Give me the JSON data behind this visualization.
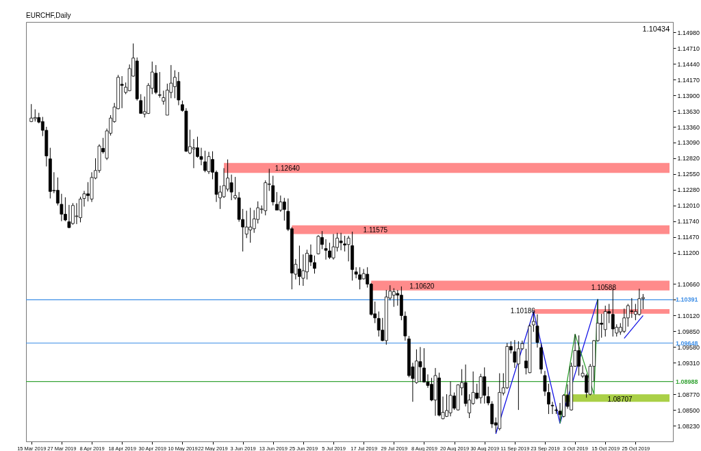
{
  "chart_data": {
    "type": "candlestick",
    "title": "EURCHF,Daily",
    "categories": [
      "15 Mar 2019",
      null,
      null,
      null,
      null,
      null,
      null,
      null,
      "27 Mar 2019",
      null,
      null,
      null,
      null,
      null,
      null,
      null,
      "8 Apr 2019",
      null,
      null,
      null,
      null,
      null,
      null,
      null,
      "18 Apr 2019",
      null,
      null,
      null,
      null,
      null,
      null,
      null,
      "30 Apr 2019",
      null,
      null,
      null,
      null,
      null,
      null,
      null,
      "10 May 2019",
      null,
      null,
      null,
      null,
      null,
      null,
      null,
      "22 May 2019",
      null,
      null,
      null,
      null,
      null,
      null,
      null,
      "3 Jun 2019",
      null,
      null,
      null,
      null,
      null,
      null,
      null,
      "13 Jun 2019",
      null,
      null,
      null,
      null,
      null,
      null,
      null,
      "25 Jun 2019",
      null,
      null,
      null,
      null,
      null,
      null,
      null,
      "5 Jul 2019",
      null,
      null,
      null,
      null,
      null,
      null,
      null,
      "17 Jul 2019",
      null,
      null,
      null,
      null,
      null,
      null,
      null,
      "29 Jul 2019",
      null,
      null,
      null,
      null,
      null,
      null,
      null,
      "8 Aug 2019",
      null,
      null,
      null,
      null,
      null,
      null,
      null,
      "20 Aug 2019",
      null,
      null,
      null,
      null,
      null,
      null,
      null,
      "30 Aug 2019",
      null,
      null,
      null,
      null,
      null,
      null,
      null,
      "11 Sep 2019",
      null,
      null,
      null,
      null,
      null,
      null,
      null,
      "23 Sep 2019",
      null,
      null,
      null,
      null,
      null,
      null,
      null,
      "3 Oct 2019",
      null,
      null,
      null,
      null,
      null,
      null,
      null,
      "15 Oct 2019",
      null,
      null,
      null,
      null,
      null,
      null,
      null,
      "25 Oct 2019",
      null,
      null
    ],
    "ohlc": [
      [
        1.1345,
        1.1375,
        1.1344,
        1.1351
      ],
      [
        1.135,
        1.1366,
        1.1345,
        1.1352
      ],
      [
        1.1352,
        1.136,
        1.1342,
        1.1344
      ],
      [
        1.1345,
        1.1353,
        1.132,
        1.133
      ],
      [
        1.133,
        1.1336,
        1.1268,
        1.1286
      ],
      [
        1.1281,
        1.13,
        1.1213,
        1.1225
      ],
      [
        1.1226,
        1.1258,
        1.1222,
        1.1227
      ],
      [
        1.1227,
        1.1249,
        1.1201,
        1.1205
      ],
      [
        1.1203,
        1.1221,
        1.1174,
        1.1186
      ],
      [
        1.1186,
        1.1215,
        1.1174,
        1.1176
      ],
      [
        1.1173,
        1.1202,
        1.1162,
        1.1163
      ],
      [
        1.117,
        1.1205,
        1.1168,
        1.1201
      ],
      [
        1.1182,
        1.1205,
        1.1169,
        1.1183
      ],
      [
        1.118,
        1.1216,
        1.1172,
        1.1212
      ],
      [
        1.1213,
        1.1226,
        1.1199,
        1.1221
      ],
      [
        1.1221,
        1.1241,
        1.1208,
        1.1218
      ],
      [
        1.1212,
        1.1258,
        1.1207,
        1.1249
      ],
      [
        1.1248,
        1.1282,
        1.1246,
        1.1261
      ],
      [
        1.1261,
        1.1306,
        1.1257,
        1.1303
      ],
      [
        1.1299,
        1.1317,
        1.129,
        1.1293
      ],
      [
        1.1282,
        1.1333,
        1.1279,
        1.1329
      ],
      [
        1.1325,
        1.1356,
        1.1321,
        1.1351
      ],
      [
        1.1345,
        1.1377,
        1.1343,
        1.137
      ],
      [
        1.1367,
        1.1425,
        1.1366,
        1.1421
      ],
      [
        1.1409,
        1.1423,
        1.1368,
        1.1407
      ],
      [
        1.1395,
        1.1412,
        1.1392,
        1.1404
      ],
      [
        1.1398,
        1.1443,
        1.1397,
        1.1436
      ],
      [
        1.1423,
        1.1479,
        1.1422,
        1.1454
      ],
      [
        1.1449,
        1.1455,
        1.1381,
        1.1384
      ],
      [
        1.1381,
        1.1392,
        1.1359,
        1.1359
      ],
      [
        1.1358,
        1.1388,
        1.1352,
        1.1362
      ],
      [
        1.1359,
        1.1411,
        1.1358,
        1.1407
      ],
      [
        1.1402,
        1.1448,
        1.1392,
        1.143
      ],
      [
        1.1428,
        1.1442,
        1.1392,
        1.1395
      ],
      [
        1.1391,
        1.143,
        1.1386,
        1.139
      ],
      [
        1.138,
        1.1398,
        1.1374,
        1.1386
      ],
      [
        1.1356,
        1.141,
        1.1356,
        1.1399
      ],
      [
        1.1395,
        1.1442,
        1.1385,
        1.1411
      ],
      [
        1.1405,
        1.1433,
        1.1385,
        1.1421
      ],
      [
        1.1414,
        1.143,
        1.1373,
        1.1382
      ],
      [
        1.1374,
        1.1381,
        1.1362,
        1.1364
      ],
      [
        1.1363,
        1.1368,
        1.1293,
        1.1294
      ],
      [
        1.1291,
        1.1331,
        1.1289,
        1.1302
      ],
      [
        1.1298,
        1.1315,
        1.1265,
        1.13
      ],
      [
        1.13,
        1.1319,
        1.1283,
        1.1285
      ],
      [
        1.1285,
        1.13,
        1.127,
        1.128
      ],
      [
        1.1276,
        1.1295,
        1.1258,
        1.1261
      ],
      [
        1.1259,
        1.1293,
        1.1255,
        1.1285
      ],
      [
        1.128,
        1.1294,
        1.1246,
        1.1258
      ],
      [
        1.1258,
        1.1261,
        1.1207,
        1.122
      ],
      [
        1.1214,
        1.1235,
        1.1195,
        1.1224
      ],
      [
        1.1216,
        1.1265,
        1.1214,
        1.1235
      ],
      [
        1.1229,
        1.128,
        1.1225,
        1.1248
      ],
      [
        1.124,
        1.1254,
        1.121,
        1.1224
      ],
      [
        1.1214,
        1.125,
        1.1211,
        1.1218
      ],
      [
        1.1214,
        1.1224,
        1.1173,
        1.1177
      ],
      [
        1.1177,
        1.1195,
        1.1122,
        1.1164
      ],
      [
        1.1152,
        1.1192,
        1.1145,
        1.1164
      ],
      [
        1.1159,
        1.1197,
        1.1137,
        1.1164
      ],
      [
        1.1161,
        1.1193,
        1.1154,
        1.1178
      ],
      [
        1.1177,
        1.1208,
        1.117,
        1.1197
      ],
      [
        1.1194,
        1.1201,
        1.1187,
        1.1195
      ],
      [
        1.1192,
        1.1244,
        1.1184,
        1.124
      ],
      [
        1.1237,
        1.1264,
        1.1226,
        1.1238
      ],
      [
        1.1235,
        1.1252,
        1.1201,
        1.1207
      ],
      [
        1.1203,
        1.1224,
        1.1193,
        1.1193
      ],
      [
        1.1193,
        1.1218,
        1.119,
        1.1207
      ],
      [
        1.1207,
        1.1214,
        1.1175,
        1.1194
      ],
      [
        1.1191,
        1.1213,
        1.1157,
        1.116
      ],
      [
        1.1161,
        1.1164,
        1.1057,
        1.1085
      ],
      [
        1.1083,
        1.1109,
        1.1074,
        1.11
      ],
      [
        1.1092,
        1.1132,
        1.1064,
        1.1079
      ],
      [
        1.1076,
        1.1117,
        1.1063,
        1.1089
      ],
      [
        1.1087,
        1.1125,
        1.1074,
        1.1119
      ],
      [
        1.1116,
        1.1134,
        1.1097,
        1.1104
      ],
      [
        1.1103,
        1.1115,
        1.1084,
        1.1093
      ],
      [
        1.1118,
        1.115,
        1.1117,
        1.1148
      ],
      [
        1.1146,
        1.1157,
        1.1126,
        1.1134
      ],
      [
        1.1127,
        1.1143,
        1.1108,
        1.1124
      ],
      [
        1.1123,
        1.1137,
        1.1109,
        1.1112
      ],
      [
        1.1111,
        1.1152,
        1.1108,
        1.113
      ],
      [
        1.1129,
        1.1154,
        1.1122,
        1.1145
      ],
      [
        1.114,
        1.1154,
        1.1124,
        1.1137
      ],
      [
        1.1135,
        1.1149,
        1.1122,
        1.1133
      ],
      [
        1.1134,
        1.1149,
        1.1105,
        1.1145
      ],
      [
        1.1132,
        1.1156,
        1.1072,
        1.1091
      ],
      [
        1.1087,
        1.1095,
        1.1076,
        1.1083
      ],
      [
        1.1082,
        1.1095,
        1.1057,
        1.1074
      ],
      [
        1.1075,
        1.1092,
        1.1074,
        1.1084
      ],
      [
        1.1083,
        1.1095,
        1.106,
        1.1066
      ],
      [
        1.1066,
        1.1068,
        1.1012,
        1.1014
      ],
      [
        1.1015,
        1.1036,
        1.0999,
        1.1008
      ],
      [
        1.1007,
        1.1019,
        1.0976,
        1.0987
      ],
      [
        1.0987,
        1.1008,
        1.0968,
        1.0969
      ],
      [
        1.0969,
        1.1056,
        1.0962,
        1.1044
      ],
      [
        1.1042,
        1.1064,
        1.1038,
        1.1054
      ],
      [
        1.1047,
        1.1059,
        1.1027,
        1.1053
      ],
      [
        1.105,
        1.1056,
        1.1029,
        1.1047
      ],
      [
        1.1047,
        1.1062,
        1.1004,
        1.1012
      ],
      [
        1.1011,
        1.1019,
        1.0969,
        1.0977
      ],
      [
        1.0972,
        1.0977,
        1.0906,
        1.0909
      ],
      [
        1.0924,
        1.0931,
        1.0864,
        1.0904
      ],
      [
        1.0897,
        1.0954,
        1.0895,
        1.0934
      ],
      [
        1.0933,
        1.0958,
        1.0898,
        1.0924
      ],
      [
        1.0922,
        1.0956,
        1.0897,
        1.0898
      ],
      [
        1.0898,
        1.0911,
        1.0888,
        1.0892
      ],
      [
        1.0894,
        1.0905,
        1.0865,
        1.0867
      ],
      [
        1.0867,
        1.0922,
        1.084,
        1.0909
      ],
      [
        1.0905,
        1.0914,
        1.0839,
        1.0841
      ],
      [
        1.0835,
        1.0873,
        1.0834,
        1.0846
      ],
      [
        1.0839,
        1.0877,
        1.0838,
        1.0849
      ],
      [
        1.0845,
        1.0899,
        1.0839,
        1.0875
      ],
      [
        1.0874,
        1.088,
        1.085,
        1.0853
      ],
      [
        1.085,
        1.0894,
        1.0849,
        1.0893
      ],
      [
        1.0888,
        1.092,
        1.0875,
        1.0897
      ],
      [
        1.0897,
        1.0928,
        1.0856,
        1.0861
      ],
      [
        1.0845,
        1.0877,
        1.0836,
        1.0867
      ],
      [
        1.0861,
        1.0916,
        1.0859,
        1.088
      ],
      [
        1.0879,
        1.0895,
        1.0868,
        1.087
      ],
      [
        1.0871,
        1.0912,
        1.0861,
        1.0907
      ],
      [
        1.0907,
        1.0923,
        1.0861,
        1.0875
      ],
      [
        1.0873,
        1.089,
        1.0858,
        1.0862
      ],
      [
        1.086,
        1.0865,
        1.0819,
        1.0826
      ],
      [
        1.0828,
        1.0837,
        1.0811,
        1.0824
      ],
      [
        1.0818,
        1.0913,
        1.0815,
        1.088
      ],
      [
        1.0879,
        1.0913,
        1.0875,
        1.0888
      ],
      [
        1.0888,
        1.0965,
        1.0886,
        1.0959
      ],
      [
        1.0959,
        1.0968,
        1.0947,
        1.0953
      ],
      [
        1.095,
        1.097,
        1.0922,
        1.0932
      ],
      [
        1.0929,
        1.0968,
        1.085,
        1.0955
      ],
      [
        1.0955,
        1.0969,
        1.0953,
        1.0964
      ],
      [
        1.0934,
        1.0955,
        1.0911,
        1.0922
      ],
      [
        1.0914,
        1.0997,
        1.0913,
        1.0994
      ],
      [
        1.0996,
        1.1019,
        1.0984,
        1.1002
      ],
      [
        1.0994,
        1.1014,
        1.0957,
        1.0966
      ],
      [
        1.0957,
        1.0964,
        1.0912,
        1.092
      ],
      [
        1.0909,
        1.0917,
        1.0874,
        1.0882
      ],
      [
        1.088,
        1.0895,
        1.0843,
        1.086
      ],
      [
        1.0858,
        1.0864,
        1.0843,
        1.0857
      ],
      [
        1.085,
        1.0856,
        1.0843,
        1.0849
      ],
      [
        1.0848,
        1.0862,
        1.0832,
        1.0842
      ],
      [
        1.0839,
        1.0877,
        1.0837,
        1.0875
      ],
      [
        1.0875,
        1.0894,
        1.0852,
        1.0856
      ],
      [
        1.085,
        1.0931,
        1.0849,
        1.0925
      ],
      [
        1.0925,
        1.098,
        1.0924,
        1.0952
      ],
      [
        1.0952,
        1.0978,
        1.0909,
        1.0925
      ],
      [
        1.0908,
        1.0927,
        1.0905,
        1.0913
      ],
      [
        1.0909,
        1.0912,
        1.0871,
        1.088
      ],
      [
        1.0877,
        1.0929,
        1.0875,
        1.0925
      ],
      [
        1.0925,
        1.097,
        1.0899,
        1.0969
      ],
      [
        1.0969,
        1.104,
        1.0967,
        1.0999
      ],
      [
        1.0999,
        1.1015,
        1.0974,
        1.0997
      ],
      [
        1.0988,
        1.1029,
        1.0976,
        1.1019
      ],
      [
        1.1019,
        1.1032,
        1.0999,
        1.1016
      ],
      [
        1.1014,
        1.1059,
        1.0976,
        1.0989
      ],
      [
        1.0982,
        1.0997,
        1.0976,
        1.0992
      ],
      [
        1.0984,
        1.0999,
        1.0979,
        1.0992
      ],
      [
        1.0985,
        1.1024,
        1.0982,
        1.1008
      ],
      [
        1.1008,
        1.1032,
        1.0993,
        1.1029
      ],
      [
        1.102,
        1.1042,
        1.1008,
        1.1019
      ],
      [
        1.1014,
        1.1032,
        1.1004,
        1.1019
      ],
      [
        1.1014,
        1.1058,
        1.1012,
        1.1041
      ],
      [
        1.1041,
        1.1049,
        1.1023,
        1.1043
      ]
    ],
    "series": [
      {
        "type": "line",
        "color": "#1414e6",
        "values": [
          null,
          null,
          null,
          null,
          null,
          null,
          null,
          null,
          null,
          null,
          null,
          null,
          null,
          null,
          null,
          null,
          null,
          null,
          null,
          null,
          null,
          null,
          null,
          null,
          null,
          null,
          null,
          null,
          null,
          null,
          null,
          null,
          null,
          null,
          null,
          null,
          null,
          null,
          null,
          null,
          null,
          null,
          null,
          null,
          null,
          null,
          null,
          null,
          null,
          null,
          null,
          null,
          null,
          null,
          null,
          null,
          null,
          null,
          null,
          null,
          null,
          null,
          null,
          null,
          null,
          null,
          null,
          null,
          null,
          null,
          null,
          null,
          null,
          null,
          null,
          null,
          null,
          null,
          null,
          null,
          null,
          null,
          null,
          null,
          null,
          null,
          null,
          null,
          null,
          null,
          null,
          null,
          null,
          null,
          null,
          null,
          null,
          null,
          null,
          null,
          null,
          null,
          null,
          null,
          null,
          null,
          null,
          null,
          null,
          null,
          null,
          null,
          null,
          null,
          null,
          null,
          null,
          null,
          null,
          null,
          null,
          null,
          null,
          1.0809,
          null,
          null,
          null,
          null,
          null,
          null,
          null,
          null,
          null,
          1.1019,
          null,
          null,
          null,
          null,
          null,
          null,
          1.0827,
          null,
          null,
          null,
          null,
          null,
          null,
          null,
          null,
          null,
          1.104,
          null,
          null,
          null,
          null,
          null,
          null,
          null,
          null,
          null,
          null,
          null,
          null
        ]
      },
      {
        "type": "line",
        "color": "#2e9e2e",
        "values": [
          null,
          null,
          null,
          null,
          null,
          null,
          null,
          null,
          null,
          null,
          null,
          null,
          null,
          null,
          null,
          null,
          null,
          null,
          null,
          null,
          null,
          null,
          null,
          null,
          null,
          null,
          null,
          null,
          null,
          null,
          null,
          null,
          null,
          null,
          null,
          null,
          null,
          null,
          null,
          null,
          null,
          null,
          null,
          null,
          null,
          null,
          null,
          null,
          null,
          null,
          null,
          null,
          null,
          null,
          null,
          null,
          null,
          null,
          null,
          null,
          null,
          null,
          null,
          null,
          null,
          null,
          null,
          null,
          null,
          null,
          null,
          null,
          null,
          null,
          null,
          null,
          null,
          null,
          null,
          null,
          null,
          null,
          null,
          null,
          null,
          null,
          null,
          null,
          null,
          null,
          null,
          null,
          null,
          null,
          null,
          null,
          null,
          null,
          null,
          null,
          null,
          null,
          null,
          null,
          null,
          null,
          null,
          null,
          null,
          null,
          null,
          null,
          null,
          null,
          null,
          null,
          null,
          null,
          null,
          null,
          null,
          null,
          null,
          null,
          null,
          null,
          null,
          null,
          null,
          null,
          null,
          null,
          null,
          null,
          null,
          null,
          null,
          null,
          null,
          null,
          1.0827,
          null,
          null,
          null,
          1.098,
          null,
          null,
          null,
          null,
          1.0877,
          1.104,
          null,
          null,
          null,
          null,
          null,
          null,
          null,
          null,
          null,
          null,
          null,
          null
        ]
      },
      {
        "type": "line",
        "color": "#1414e6",
        "values": [
          null,
          null,
          null,
          null,
          null,
          null,
          null,
          null,
          null,
          null,
          null,
          null,
          null,
          null,
          null,
          null,
          null,
          null,
          null,
          null,
          null,
          null,
          null,
          null,
          null,
          null,
          null,
          null,
          null,
          null,
          null,
          null,
          null,
          null,
          null,
          null,
          null,
          null,
          null,
          null,
          null,
          null,
          null,
          null,
          null,
          null,
          null,
          null,
          null,
          null,
          null,
          null,
          null,
          null,
          null,
          null,
          null,
          null,
          null,
          null,
          null,
          null,
          null,
          null,
          null,
          null,
          null,
          null,
          null,
          null,
          null,
          null,
          null,
          null,
          null,
          null,
          null,
          null,
          null,
          null,
          null,
          null,
          null,
          null,
          null,
          null,
          null,
          null,
          null,
          null,
          null,
          null,
          null,
          null,
          null,
          null,
          null,
          null,
          null,
          null,
          null,
          null,
          null,
          null,
          null,
          null,
          null,
          null,
          null,
          null,
          null,
          null,
          null,
          null,
          null,
          null,
          null,
          null,
          null,
          null,
          null,
          null,
          null,
          null,
          null,
          null,
          null,
          null,
          null,
          null,
          null,
          null,
          null,
          null,
          null,
          null,
          null,
          null,
          null,
          null,
          null,
          null,
          null,
          null,
          null,
          null,
          null,
          null,
          null,
          null,
          null,
          null,
          null,
          null,
          null,
          null,
          null,
          1.0973,
          null,
          null,
          null,
          null,
          1.1012
        ]
      }
    ],
    "ylim": [
      1.0796,
      1.1516
    ],
    "yticks": [
      {
        "value": 1.0823,
        "label": "1.08230"
      },
      {
        "value": 1.085,
        "label": "1.08500"
      },
      {
        "value": 1.0877,
        "label": "1.08770"
      },
      {
        "value": 1.0931,
        "label": "1.09310"
      },
      {
        "value": 1.0958,
        "label": "1.09580"
      },
      {
        "value": 1.0985,
        "label": "1.09850"
      },
      {
        "value": 1.1012,
        "label": "1.10120"
      },
      {
        "value": 1.1039,
        "label": null
      },
      {
        "value": 1.1066,
        "label": "1.10660"
      },
      {
        "value": 1.112,
        "label": "1.11200"
      },
      {
        "value": 1.1147,
        "label": "1.11470"
      },
      {
        "value": 1.1174,
        "label": "1.11740"
      },
      {
        "value": 1.1201,
        "label": "1.12010"
      },
      {
        "value": 1.1228,
        "label": "1.12280"
      },
      {
        "value": 1.1255,
        "label": "1.12550"
      },
      {
        "value": 1.1282,
        "label": "1.12820"
      },
      {
        "value": 1.1309,
        "label": "1.13090"
      },
      {
        "value": 1.1336,
        "label": "1.13360"
      },
      {
        "value": 1.1363,
        "label": "1.13630"
      },
      {
        "value": 1.139,
        "label": "1.13900"
      },
      {
        "value": 1.1417,
        "label": "1.14170"
      },
      {
        "value": 1.1444,
        "label": "1.14440"
      },
      {
        "value": 1.1471,
        "label": "1.14710"
      },
      {
        "value": 1.1498,
        "label": "1.14980"
      }
    ],
    "ref_lines": [
      {
        "axis": "y",
        "value": 1.10391,
        "label": "1.10391",
        "color": "#3d8ee6"
      },
      {
        "axis": "y",
        "value": 1.09648,
        "label": "1.09648",
        "color": "#3d8ee6"
      },
      {
        "axis": "y",
        "value": 1.08988,
        "label": "1.08988",
        "color": "#36a336"
      }
    ],
    "bands": [
      {
        "axis": "y",
        "from": 1.1257,
        "to": 1.1274,
        "color": "#ff8585"
      },
      {
        "axis": "y",
        "from": 1.1152,
        "to": 1.1167,
        "color": "#ff8585"
      },
      {
        "axis": "y",
        "from": 1.1055,
        "to": 1.1072,
        "color": "#ff8585"
      },
      {
        "axis": "y",
        "from": 1.1015,
        "to": 1.1023,
        "color": "#ff8585"
      },
      {
        "axis": "y",
        "from": 1.0864,
        "to": 1.0877,
        "color": "#a5cd3d"
      }
    ],
    "annotations": [
      "1.10434",
      "1.12640",
      "1.11575",
      "1.10620",
      "1.10588",
      "1.10186",
      "1.08707"
    ]
  }
}
